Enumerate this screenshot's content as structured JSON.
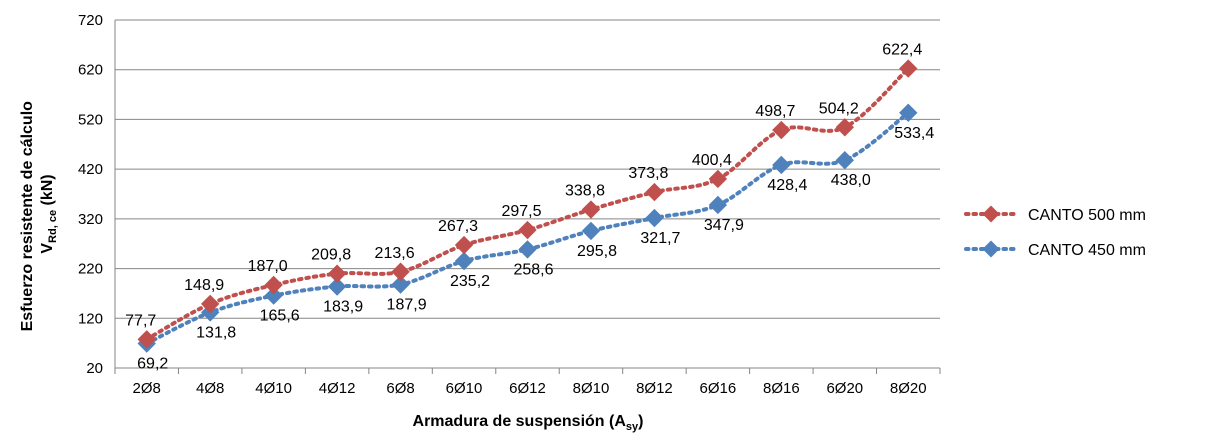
{
  "chart_data": {
    "type": "line",
    "categories": [
      "2Ø8",
      "4Ø8",
      "4Ø10",
      "4Ø12",
      "6Ø8",
      "6Ø10",
      "6Ø12",
      "8Ø10",
      "8Ø12",
      "6Ø16",
      "8Ø16",
      "6Ø20",
      "8Ø20"
    ],
    "series": [
      {
        "name": "CANTO 500 mm",
        "color": "#c0504d",
        "values": [
          77.7,
          148.9,
          187.0,
          209.8,
          213.6,
          267.3,
          297.5,
          338.8,
          373.8,
          400.4,
          498.7,
          504.2,
          622.4
        ],
        "labels": [
          "77,7",
          "148,9",
          "187,0",
          "209,8",
          "213,6",
          "267,3",
          "297,5",
          "338,8",
          "373,8",
          "400,4",
          "498,7",
          "504,2",
          "622,4"
        ]
      },
      {
        "name": "CANTO 450 mm",
        "color": "#4f81bd",
        "values": [
          69.2,
          131.8,
          165.6,
          183.9,
          187.9,
          235.2,
          258.6,
          295.8,
          321.7,
          347.9,
          428.4,
          438.0,
          533.4
        ],
        "labels": [
          "69,2",
          "131,8",
          "165,6",
          "183,9",
          "187,9",
          "235,2",
          "258,6",
          "295,8",
          "321,7",
          "347,9",
          "428,4",
          "438,0",
          "533,4"
        ]
      }
    ],
    "xlabel": {
      "main": "Armadura de suspensión (A",
      "sub": "sy",
      "end": ")"
    },
    "ylabel": {
      "line1": "Esfuerzo resistente de cálculo",
      "line2_main": "V",
      "line2_sub": "Rd, ce",
      "line2_end": " (kN)"
    },
    "ylim": [
      20,
      720
    ],
    "yticks": [
      20,
      120,
      220,
      320,
      420,
      520,
      620,
      720
    ],
    "grid": true,
    "legend": "right"
  }
}
